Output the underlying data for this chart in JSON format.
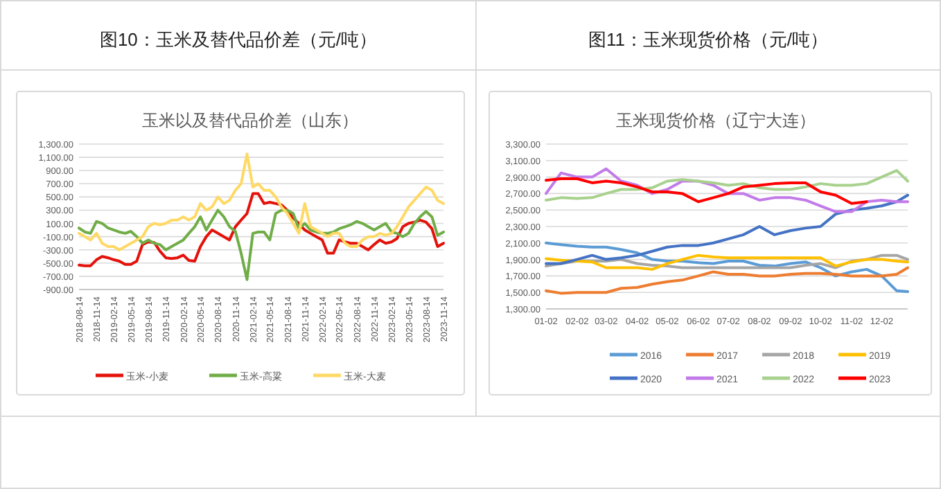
{
  "chart_data": [
    {
      "type": "line",
      "title": "图10：玉米及替代品价差（元/吨）",
      "subtitle": "玉米以及替代品价差（山东）",
      "x": [
        "2018-08-14",
        "2018-09-14",
        "2018-10-14",
        "2018-11-14",
        "2018-12-14",
        "2019-01-14",
        "2019-02-14",
        "2019-03-14",
        "2019-04-14",
        "2019-05-14",
        "2019-06-14",
        "2019-07-14",
        "2019-08-14",
        "2019-09-14",
        "2019-10-14",
        "2019-11-14",
        "2019-12-14",
        "2020-01-14",
        "2020-02-14",
        "2020-03-14",
        "2020-04-14",
        "2020-05-14",
        "2020-06-14",
        "2020-07-14",
        "2020-08-14",
        "2020-09-14",
        "2020-10-14",
        "2020-11-14",
        "2020-12-14",
        "2021-01-14",
        "2021-02-14",
        "2021-03-14",
        "2021-04-14",
        "2021-05-14",
        "2021-06-14",
        "2021-07-14",
        "2021-08-14",
        "2021-09-14",
        "2021-10-14",
        "2021-11-14",
        "2021-12-14",
        "2022-01-14",
        "2022-02-14",
        "2022-03-14",
        "2022-04-14",
        "2022-05-14",
        "2022-06-14",
        "2022-07-14",
        "2022-08-14",
        "2022-09-14",
        "2022-10-14",
        "2022-11-14",
        "2022-12-14",
        "2023-01-14",
        "2023-02-14",
        "2023-03-14",
        "2023-04-14",
        "2023-05-14",
        "2023-06-14",
        "2023-07-14",
        "2023-08-14",
        "2023-09-14",
        "2023-10-14",
        "2023-11-14"
      ],
      "xlim": [
        "2018-08-14",
        "2023-11-14"
      ],
      "xticks": [
        "2018-08-14",
        "2018-11-14",
        "2019-02-14",
        "2019-05-14",
        "2019-08-14",
        "2019-11-14",
        "2020-02-14",
        "2020-05-14",
        "2020-08-14",
        "2020-11-14",
        "2021-02-14",
        "2021-05-14",
        "2021-08-14",
        "2021-11-14",
        "2022-02-14",
        "2022-05-14",
        "2022-08-14",
        "2022-11-14",
        "2023-02-14",
        "2023-05-14",
        "2023-08-14",
        "2023-11-14"
      ],
      "ylim": [
        -900,
        1300
      ],
      "yticks": [
        {
          "value": -900,
          "label": "-900.00"
        },
        {
          "value": -700,
          "label": "-700.00"
        },
        {
          "value": -500,
          "label": "-500.00"
        },
        {
          "value": -300,
          "label": "-300.00"
        },
        {
          "value": -100,
          "label": "-100.00"
        },
        {
          "value": 100,
          "label": "100.00"
        },
        {
          "value": 300,
          "label": "300.00"
        },
        {
          "value": 500,
          "label": "500.00"
        },
        {
          "value": 700,
          "label": "700.00"
        },
        {
          "value": 900,
          "label": "900.00"
        },
        {
          "value": 1100,
          "label": "1,100.00"
        },
        {
          "value": 1300,
          "label": "1,300.00"
        }
      ],
      "grid": "y",
      "legend": "bottom",
      "series": [
        {
          "name": "玉米-小麦",
          "color": "#e3120b",
          "values": [
            -530,
            -540,
            -540,
            -450,
            -400,
            -420,
            -450,
            -470,
            -520,
            -520,
            -470,
            -220,
            -180,
            -190,
            -320,
            -420,
            -430,
            -420,
            -380,
            -460,
            -470,
            -250,
            -100,
            0,
            -50,
            -100,
            -150,
            50,
            150,
            250,
            550,
            550,
            400,
            420,
            400,
            380,
            300,
            180,
            100,
            0,
            -50,
            -100,
            -150,
            -350,
            -350,
            -150,
            -180,
            -200,
            -200,
            -250,
            -300,
            -220,
            -150,
            -200,
            -180,
            -130,
            50,
            100,
            120,
            150,
            120,
            20,
            -250,
            -200
          ]
        },
        {
          "name": "玉米-高粱",
          "color": "#70ad47",
          "values": [
            30,
            -30,
            -50,
            130,
            100,
            30,
            0,
            -30,
            -50,
            -20,
            -100,
            -200,
            -150,
            -200,
            -220,
            -300,
            -250,
            -200,
            -150,
            -50,
            50,
            200,
            0,
            150,
            300,
            200,
            50,
            -20,
            -350,
            -750,
            -50,
            -30,
            -30,
            -150,
            250,
            300,
            300,
            250,
            20,
            100,
            0,
            -30,
            -50,
            -50,
            -30,
            20,
            50,
            80,
            130,
            100,
            50,
            0,
            50,
            100,
            -30,
            -50,
            -100,
            -50,
            100,
            200,
            280,
            200,
            -80,
            -30
          ]
        },
        {
          "name": "玉米-大麦",
          "color": "#ffd966",
          "values": [
            -50,
            -100,
            -150,
            -50,
            -200,
            -250,
            -250,
            -300,
            -250,
            -200,
            -150,
            -100,
            50,
            100,
            80,
            100,
            150,
            150,
            200,
            150,
            200,
            400,
            300,
            350,
            500,
            400,
            450,
            600,
            700,
            1150,
            650,
            700,
            600,
            600,
            500,
            350,
            250,
            100,
            -50,
            400,
            50,
            0,
            -50,
            -100,
            -50,
            -50,
            -200,
            -250,
            -250,
            -150,
            -100,
            -100,
            -50,
            -80,
            -50,
            50,
            200,
            350,
            450,
            550,
            650,
            600,
            450,
            400
          ]
        }
      ]
    },
    {
      "type": "line",
      "title": "图11：玉米现货价格（元/吨）",
      "subtitle": "玉米现货价格（辽宁大连）",
      "x": [
        "--01-02",
        "--01-17",
        "--02-02",
        "--02-17",
        "--03-02",
        "--03-17",
        "--04-02",
        "--04-17",
        "--05-02",
        "--05-17",
        "--06-02",
        "--06-17",
        "--07-02",
        "--07-17",
        "--08-02",
        "--08-17",
        "--09-02",
        "--09-17",
        "--10-02",
        "--10-17",
        "--11-02",
        "--11-17",
        "--12-02",
        "--12-17",
        "--12-28"
      ],
      "xlim": [
        "--01-02",
        "--12-28"
      ],
      "xticks": [
        {
          "value": "--01-02",
          "label": "01-02"
        },
        {
          "value": "--02-02",
          "label": "02-02"
        },
        {
          "value": "--03-02",
          "label": "03-02"
        },
        {
          "value": "--04-02",
          "label": "04-02"
        },
        {
          "value": "--05-02",
          "label": "05-02"
        },
        {
          "value": "--06-02",
          "label": "06-02"
        },
        {
          "value": "--07-02",
          "label": "07-02"
        },
        {
          "value": "--08-02",
          "label": "08-02"
        },
        {
          "value": "--09-02",
          "label": "09-02"
        },
        {
          "value": "--10-02",
          "label": "10-02"
        },
        {
          "value": "--11-02",
          "label": "11-02"
        },
        {
          "value": "--12-02",
          "label": "12-02"
        }
      ],
      "ylim": [
        1300,
        3300
      ],
      "yticks": [
        {
          "value": 1300,
          "label": "1,300.00"
        },
        {
          "value": 1500,
          "label": "1,500.00"
        },
        {
          "value": 1700,
          "label": "1,700.00"
        },
        {
          "value": 1900,
          "label": "1,900.00"
        },
        {
          "value": 2100,
          "label": "2,100.00"
        },
        {
          "value": 2300,
          "label": "2,300.00"
        },
        {
          "value": 2500,
          "label": "2,500.00"
        },
        {
          "value": 2700,
          "label": "2,700.00"
        },
        {
          "value": 2900,
          "label": "2,900.00"
        },
        {
          "value": 3100,
          "label": "3,100.00"
        },
        {
          "value": 3300,
          "label": "3,300.00"
        }
      ],
      "grid": "y",
      "legend": "bottom",
      "series": [
        {
          "name": "2016",
          "color": "#5b9bd5",
          "values": [
            2100,
            2080,
            2060,
            2050,
            2050,
            2020,
            1980,
            1900,
            1880,
            1880,
            1860,
            1850,
            1880,
            1880,
            1830,
            1820,
            1850,
            1870,
            1800,
            1700,
            1750,
            1780,
            1700,
            1520,
            1510
          ]
        },
        {
          "name": "2017",
          "color": "#ed7d31",
          "values": [
            1520,
            1490,
            1500,
            1500,
            1500,
            1550,
            1560,
            1600,
            1630,
            1650,
            1700,
            1750,
            1720,
            1720,
            1700,
            1700,
            1720,
            1730,
            1730,
            1720,
            1700,
            1700,
            1700,
            1720,
            1800
          ]
        },
        {
          "name": "2018",
          "color": "#a5a5a5",
          "values": [
            1820,
            1850,
            1880,
            1880,
            1880,
            1900,
            1850,
            1830,
            1820,
            1800,
            1800,
            1800,
            1800,
            1800,
            1800,
            1800,
            1800,
            1830,
            1850,
            1800,
            1880,
            1900,
            1950,
            1950,
            1900
          ]
        },
        {
          "name": "2019",
          "color": "#ffc000",
          "values": [
            1910,
            1890,
            1880,
            1870,
            1800,
            1800,
            1800,
            1780,
            1850,
            1900,
            1950,
            1930,
            1920,
            1920,
            1920,
            1920,
            1920,
            1920,
            1920,
            1820,
            1870,
            1900,
            1900,
            1880,
            1870
          ]
        },
        {
          "name": "2020",
          "color": "#4472c4",
          "values": [
            1850,
            1850,
            1900,
            1950,
            1900,
            1920,
            1950,
            2000,
            2050,
            2070,
            2070,
            2100,
            2150,
            2200,
            2300,
            2200,
            2250,
            2280,
            2300,
            2450,
            2500,
            2520,
            2550,
            2600,
            2680
          ]
        },
        {
          "name": "2021",
          "color": "#c27be8",
          "values": [
            2700,
            2950,
            2900,
            2900,
            3000,
            2850,
            2800,
            2700,
            2750,
            2850,
            2850,
            2800,
            2700,
            2700,
            2620,
            2650,
            2650,
            2620,
            2550,
            2480,
            2480,
            2600,
            2620,
            2600,
            2600
          ]
        },
        {
          "name": "2022",
          "color": "#a9d18e",
          "values": [
            2620,
            2650,
            2640,
            2650,
            2700,
            2750,
            2750,
            2770,
            2850,
            2870,
            2850,
            2830,
            2800,
            2820,
            2770,
            2750,
            2750,
            2780,
            2820,
            2800,
            2800,
            2820,
            2900,
            2980,
            2850
          ]
        },
        {
          "name": "2023",
          "color": "#ff0000",
          "values": [
            2860,
            2880,
            2880,
            2830,
            2850,
            2830,
            2780,
            2720,
            2720,
            2700,
            2600,
            2650,
            2700,
            2780,
            2800,
            2820,
            2830,
            2830,
            2720,
            2680,
            2580,
            2600,
            null,
            null,
            null
          ]
        }
      ]
    }
  ]
}
